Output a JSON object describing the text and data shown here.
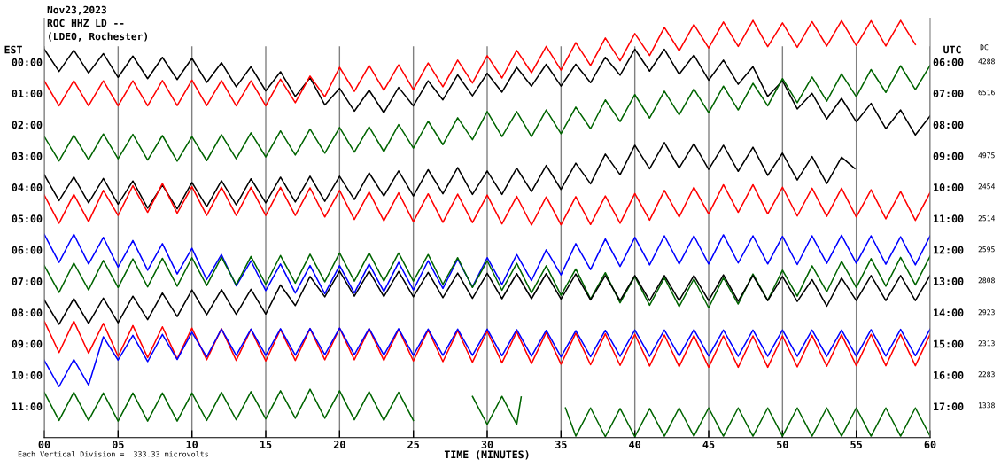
{
  "chart_data": {
    "type": "line",
    "title": "Nov23,2023",
    "subtitle": "ROC HHZ LD --",
    "annotations": [
      "(LDEO, Rochester)",
      "Each Vertical Division =  333.33 microvolts",
      "DC",
      "4288",
      "6516",
      "4975",
      "2454",
      "2514",
      "2595",
      "2808",
      "2923",
      "2313",
      "2283",
      "1338"
    ],
    "xlabel": "TIME (MINUTES)",
    "ylabel": "EST",
    "y2label": "UTC",
    "xlim": [
      0,
      60
    ],
    "xticks": [
      {
        "value": 0,
        "label": "00"
      },
      {
        "value": 5,
        "label": "05"
      },
      10,
      15,
      20,
      25,
      30,
      35,
      40,
      45,
      50,
      55,
      60
    ],
    "ylim": [
      12.0,
      -1.4
    ],
    "yticks": [
      {
        "value": 0,
        "label": "00:00"
      },
      {
        "value": 1,
        "label": "01:00"
      },
      {
        "value": 2,
        "label": "02:00"
      },
      {
        "value": 3,
        "label": "03:00"
      },
      {
        "value": 4,
        "label": "04:00"
      },
      {
        "value": 5,
        "label": "05:00"
      },
      {
        "value": 6,
        "label": "06:00"
      },
      {
        "value": 7,
        "label": "07:00"
      },
      {
        "value": 8,
        "label": "08:00"
      },
      {
        "value": 9,
        "label": "09:00"
      },
      {
        "value": 10,
        "label": "10:00"
      },
      {
        "value": 11,
        "label": "11:00"
      }
    ],
    "y2lim": [
      18.0,
      4.6
    ],
    "y2ticks": [
      {
        "value": 6,
        "label": "06:00"
      },
      {
        "value": 7,
        "label": "07:00"
      },
      {
        "value": 8,
        "label": "08:00"
      },
      {
        "value": 9,
        "label": "09:00"
      },
      {
        "value": 10,
        "label": "10:00"
      },
      {
        "value": 11,
        "label": "11:00"
      },
      {
        "value": 12,
        "label": "12:00"
      },
      {
        "value": 13,
        "label": "13:00"
      },
      {
        "value": 14,
        "label": "14:00"
      },
      {
        "value": 15,
        "label": "15:00"
      },
      {
        "value": 16,
        "label": "16:00"
      },
      {
        "value": 17,
        "label": "17:00"
      }
    ],
    "grid": "x",
    "x": [
      0,
      1,
      2,
      3,
      4,
      5,
      6,
      7,
      8,
      9,
      10,
      11,
      12,
      13,
      14,
      15,
      16,
      17,
      18,
      19,
      20,
      21,
      22,
      23,
      24,
      25,
      26,
      27,
      28,
      29,
      30,
      31,
      32,
      33,
      34,
      35,
      36,
      37,
      38,
      39,
      40,
      41,
      42,
      43,
      44,
      45,
      46,
      47,
      48,
      49,
      50,
      51,
      52,
      53,
      54,
      55,
      56,
      57,
      58,
      59,
      60
    ],
    "series": [
      {
        "color": "#000000",
        "values": [
          -0.41,
          0.3,
          -0.38,
          0.35,
          -0.27,
          0.49,
          -0.19,
          0.53,
          -0.15,
          0.56,
          -0.12,
          0.65,
          0.02,
          0.79,
          0.15,
          0.92,
          0.31,
          1.1,
          0.5,
          1.37,
          0.84,
          1.57,
          0.9,
          1.62,
          0.81,
          1.4,
          0.6,
          1.21,
          0.41,
          1.08,
          0.36,
          0.96,
          0.17,
          0.77,
          0.07,
          0.77,
          0.07,
          0.66,
          -0.15,
          0.42,
          -0.41,
          0.29,
          -0.41,
          0.39,
          -0.22,
          0.58,
          -0.06,
          0.71,
          0.15,
          1.1,
          0.6,
          1.5,
          1.0,
          1.82,
          1.16,
          1.91,
          1.32,
          2.13,
          1.53,
          2.33,
          1.72
        ]
      },
      {
        "color": "#ff0000",
        "x": [
          0,
          1,
          2,
          3,
          4,
          5,
          6,
          7,
          8,
          9,
          10,
          11,
          12,
          13,
          14,
          15,
          16,
          17,
          18,
          19,
          20,
          21,
          22,
          23,
          24,
          25,
          26,
          27,
          28,
          29,
          30,
          31,
          32,
          33,
          34,
          35,
          36,
          37,
          38,
          39,
          40,
          41,
          42,
          43,
          44,
          45,
          46,
          47,
          48,
          49,
          50,
          51,
          52,
          53,
          54,
          55,
          56,
          57,
          58,
          59
        ],
        "values": [
          0.6,
          1.4,
          0.6,
          1.4,
          0.6,
          1.4,
          0.6,
          1.4,
          0.59,
          1.39,
          0.58,
          1.39,
          0.59,
          1.4,
          0.6,
          1.4,
          0.55,
          1.3,
          0.45,
          1.11,
          0.17,
          0.94,
          0.11,
          0.9,
          0.09,
          0.88,
          0.03,
          0.79,
          -0.06,
          0.67,
          -0.2,
          0.51,
          -0.37,
          0.34,
          -0.5,
          0.26,
          -0.62,
          0.11,
          -0.77,
          -0.04,
          -0.91,
          -0.21,
          -1.11,
          -0.36,
          -1.2,
          -0.45,
          -1.28,
          -0.5,
          -1.33,
          -0.49,
          -1.25,
          -0.47,
          -1.29,
          -0.51,
          -1.32,
          -0.53,
          -1.32,
          -0.51,
          -1.33,
          -0.56
        ]
      },
      {
        "color": "#006400",
        "values": [
          2.38,
          3.16,
          2.34,
          3.12,
          2.3,
          3.09,
          2.31,
          3.13,
          2.35,
          3.17,
          2.38,
          3.15,
          2.32,
          3.09,
          2.26,
          3.03,
          2.2,
          2.97,
          2.14,
          2.91,
          2.09,
          2.88,
          2.07,
          2.86,
          2.0,
          2.75,
          1.89,
          2.64,
          1.78,
          2.48,
          1.58,
          2.38,
          1.58,
          2.38,
          1.53,
          2.29,
          1.44,
          2.13,
          1.21,
          1.9,
          1.04,
          1.79,
          0.93,
          1.69,
          0.86,
          1.62,
          0.77,
          1.53,
          0.68,
          1.4,
          0.53,
          1.3,
          0.48,
          1.25,
          0.38,
          1.11,
          0.24,
          0.97,
          0.12,
          0.88,
          0.11
        ]
      },
      {
        "color": "#000000",
        "x": [
          0,
          1,
          2,
          3,
          4,
          5,
          6,
          7,
          8,
          9,
          10,
          11,
          12,
          13,
          14,
          15,
          16,
          17,
          18,
          19,
          20,
          21,
          22,
          23,
          24,
          25,
          26,
          27,
          28,
          29,
          30,
          31,
          32,
          33,
          34,
          35,
          36,
          37,
          38,
          39,
          40,
          41,
          42,
          43,
          44,
          45,
          46,
          47,
          48,
          49,
          50,
          51,
          52,
          53,
          54,
          54.9
        ],
        "values": [
          3.6,
          4.43,
          3.67,
          4.5,
          3.72,
          4.54,
          3.8,
          4.67,
          3.93,
          4.69,
          3.85,
          4.62,
          3.79,
          4.56,
          3.73,
          4.5,
          3.68,
          4.47,
          3.65,
          4.45,
          3.65,
          4.39,
          3.54,
          4.28,
          3.48,
          4.28,
          3.44,
          4.21,
          3.37,
          4.23,
          3.48,
          4.23,
          3.39,
          4.14,
          3.3,
          4.07,
          3.23,
          3.89,
          2.94,
          3.6,
          2.66,
          3.41,
          2.57,
          3.39,
          2.61,
          3.43,
          2.66,
          3.49,
          2.72,
          3.62,
          2.91,
          3.77,
          3.02,
          3.88,
          3.04,
          3.4
        ]
      },
      {
        "color": "#ff0000",
        "values": [
          4.25,
          5.15,
          4.23,
          5.1,
          4.1,
          4.9,
          3.95,
          4.8,
          3.88,
          4.83,
          3.98,
          4.9,
          4.0,
          4.9,
          4.0,
          4.9,
          4.0,
          4.9,
          4.02,
          4.95,
          4.1,
          5.03,
          4.15,
          5.07,
          4.18,
          5.1,
          4.21,
          5.12,
          4.22,
          5.13,
          4.25,
          5.17,
          4.29,
          5.21,
          4.31,
          5.2,
          4.3,
          5.19,
          4.28,
          5.15,
          4.2,
          5.05,
          4.1,
          4.95,
          4.0,
          4.85,
          3.92,
          4.8,
          3.92,
          4.85,
          4.0,
          4.92,
          4.03,
          4.93,
          4.03,
          4.95,
          4.08,
          5.01,
          4.14,
          5.06,
          4.17
        ]
      },
      {
        "color": "#0000ff",
        "values": [
          5.5,
          6.4,
          5.5,
          6.45,
          5.6,
          6.55,
          5.7,
          6.65,
          5.8,
          6.77,
          5.95,
          6.95,
          6.15,
          7.15,
          6.35,
          7.3,
          6.45,
          7.38,
          6.5,
          7.4,
          6.5,
          7.38,
          6.45,
          7.33,
          6.4,
          7.28,
          6.35,
          7.23,
          6.3,
          7.18,
          6.25,
          7.1,
          6.15,
          6.98,
          6.0,
          6.8,
          5.8,
          6.63,
          5.65,
          6.53,
          5.6,
          6.48,
          5.55,
          6.45,
          5.55,
          6.45,
          5.52,
          6.42,
          5.55,
          6.45,
          5.57,
          6.47,
          5.55,
          6.43,
          5.53,
          6.43,
          5.55,
          6.46,
          5.58,
          6.48,
          5.55
        ]
      },
      {
        "color": "#006400",
        "values": [
          6.5,
          7.36,
          6.42,
          7.28,
          6.34,
          7.2,
          6.29,
          7.18,
          6.27,
          7.16,
          6.25,
          7.14,
          6.23,
          7.12,
          6.21,
          7.1,
          6.18,
          7.06,
          6.14,
          7.02,
          6.1,
          7.0,
          6.1,
          7.0,
          6.1,
          7.0,
          6.15,
          7.1,
          6.25,
          7.2,
          6.35,
          7.29,
          6.43,
          7.37,
          6.51,
          7.45,
          6.61,
          7.57,
          6.73,
          7.69,
          6.85,
          7.77,
          6.89,
          7.81,
          6.93,
          7.85,
          6.89,
          7.73,
          6.77,
          7.61,
          6.65,
          7.48,
          6.51,
          7.34,
          6.37,
          7.2,
          6.28,
          7.16,
          6.24,
          7.12,
          6.2
        ]
      },
      {
        "color": "#000000",
        "values": [
          7.6,
          8.38,
          7.56,
          8.35,
          7.54,
          8.33,
          7.48,
          8.23,
          7.38,
          8.13,
          7.28,
          8.07,
          7.27,
          8.06,
          7.26,
          8.05,
          7.12,
          7.78,
          6.85,
          7.5,
          6.68,
          7.48,
          6.68,
          7.49,
          6.69,
          7.5,
          6.72,
          7.53,
          6.74,
          7.55,
          6.75,
          7.56,
          6.76,
          7.56,
          6.76,
          7.57,
          6.77,
          7.6,
          6.82,
          7.62,
          6.82,
          7.62,
          6.82,
          7.62,
          6.82,
          7.62,
          6.8,
          7.64,
          6.82,
          7.62,
          6.85,
          7.65,
          6.95,
          7.8,
          6.9,
          7.62,
          6.82,
          7.62,
          6.82,
          7.62,
          6.82
        ]
      },
      {
        "color": "#ff0000",
        "values": [
          8.28,
          9.28,
          8.28,
          9.3,
          8.35,
          9.4,
          8.42,
          9.44,
          8.46,
          9.48,
          8.5,
          9.51,
          8.52,
          9.53,
          8.54,
          9.55,
          8.54,
          9.53,
          8.52,
          9.51,
          8.5,
          9.51,
          8.52,
          9.53,
          8.54,
          9.55,
          8.56,
          9.57,
          8.58,
          9.59,
          8.6,
          9.61,
          8.62,
          9.63,
          8.64,
          9.65,
          8.66,
          9.67,
          8.68,
          9.69,
          8.7,
          9.71,
          8.72,
          9.73,
          8.74,
          9.75,
          8.75,
          9.75,
          8.75,
          9.75,
          8.75,
          9.74,
          8.73,
          9.72,
          8.71,
          9.7,
          8.7,
          9.7,
          8.7,
          9.7,
          8.7
        ]
      },
      {
        "color": "#0000ff",
        "values": [
          9.53,
          10.37,
          9.5,
          10.32,
          8.78,
          9.52,
          8.73,
          9.57,
          8.7,
          9.5,
          8.63,
          9.42,
          8.53,
          9.37,
          8.53,
          9.37,
          8.52,
          9.36,
          8.51,
          9.35,
          8.5,
          9.35,
          8.51,
          9.36,
          8.52,
          9.37,
          8.53,
          9.37,
          8.53,
          9.37,
          8.53,
          9.38,
          8.55,
          9.4,
          8.57,
          9.42,
          8.58,
          9.41,
          8.57,
          9.4,
          8.56,
          9.4,
          8.56,
          9.39,
          8.55,
          9.39,
          8.56,
          9.4,
          8.56,
          9.4,
          8.56,
          9.4,
          8.56,
          9.4,
          8.56,
          9.4,
          8.55,
          9.39,
          8.54,
          9.38,
          8.53
        ]
      },
      {
        "color": "#006400",
        "x": [
          0,
          1,
          2,
          3,
          4,
          5,
          6,
          7,
          8,
          9,
          10,
          11,
          12,
          13,
          14,
          15,
          16,
          17,
          18,
          19,
          20,
          21,
          22,
          23,
          24,
          25,
          27,
          29,
          30,
          31,
          32,
          32.3,
          34,
          35.3,
          36,
          37,
          38,
          39,
          40,
          41,
          42,
          43,
          44,
          45,
          46,
          47,
          48,
          49,
          50,
          51,
          52,
          53,
          54,
          55,
          56,
          57,
          58,
          59,
          60
        ],
        "values": [
          10.55,
          11.45,
          10.55,
          11.45,
          10.57,
          11.47,
          10.57,
          11.47,
          10.57,
          11.47,
          10.57,
          11.45,
          10.55,
          11.43,
          10.53,
          11.4,
          10.5,
          11.38,
          10.45,
          11.38,
          10.5,
          11.43,
          10.53,
          11.45,
          10.55,
          11.45,
          null,
          10.68,
          11.58,
          10.68,
          11.58,
          10.7,
          null,
          11.05,
          11.95,
          11.05,
          11.97,
          11.07,
          11.97,
          11.07,
          11.95,
          11.05,
          11.95,
          11.05,
          11.95,
          11.05,
          11.95,
          11.05,
          11.95,
          11.05,
          11.95,
          11.05,
          11.95,
          11.05,
          11.95,
          11.05,
          11.95,
          11.05,
          11.95
        ]
      }
    ]
  }
}
